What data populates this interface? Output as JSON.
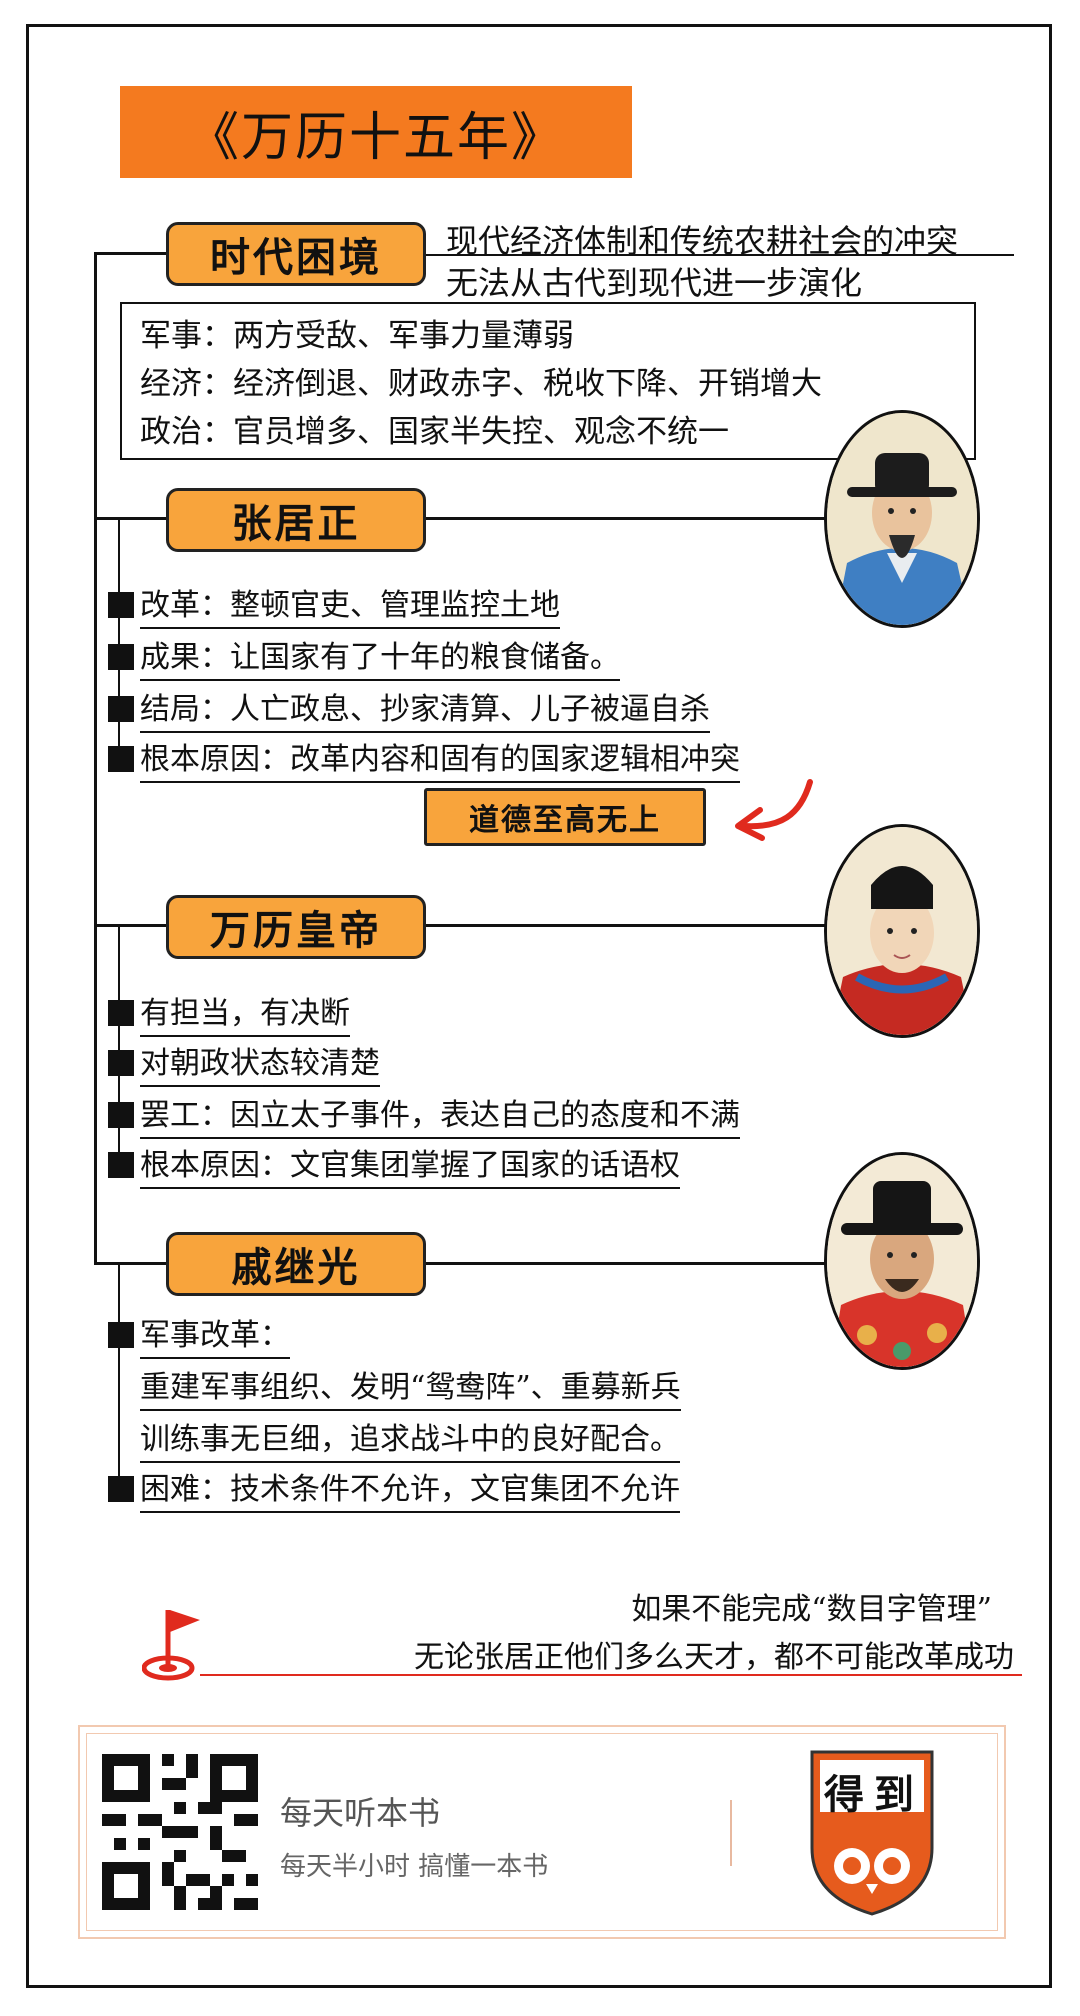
{
  "title": "《万历十五年》",
  "era": {
    "tag": "时代困境",
    "lines": [
      "现代经济体制和传统农耕社会的冲突",
      "无法从古代到现代进一步演化"
    ],
    "context": [
      "军事：两方受敌、军事力量薄弱",
      "经济：经济倒退、财政赤字、税收下降、开销增大",
      "政治：官员增多、国家半失控、观念不统一"
    ]
  },
  "zhang": {
    "tag": "张居正",
    "bullets": [
      "改革：整顿官吏、管理监控土地",
      "成果：让国家有了十年的粮食储备。",
      "结局：人亡政息、抄家清算、儿子被逼自杀",
      "根本原因：改革内容和固有的国家逻辑相冲突"
    ],
    "highlight": "道德至高无上"
  },
  "wanli": {
    "tag": "万历皇帝",
    "bullets": [
      "有担当，有决断",
      "对朝政状态较清楚",
      "罢工：因立太子事件，表达自己的态度和不满",
      "根本原因：文官集团掌握了国家的话语权"
    ]
  },
  "qi": {
    "tag": "戚继光",
    "bullet1": "军事改革：",
    "sub": [
      "重建军事组织、发明“鸳鸯阵”、重募新兵",
      "训练事无巨细，追求战斗中的良好配合。"
    ],
    "bullet2": "困难：技术条件不允许，文官集团不允许"
  },
  "conclusion": [
    "如果不能完成“数目字管理”",
    "无论张居正他们多么天才，都不可能改革成功"
  ],
  "footer": {
    "brand": "每天听本书",
    "slogan": "每天半小时  搞懂一本书",
    "logo": [
      "得",
      "到"
    ]
  },
  "colors": {
    "orange": "#f47a1f",
    "tag": "#f8a43c",
    "red": "#e02a1e"
  }
}
